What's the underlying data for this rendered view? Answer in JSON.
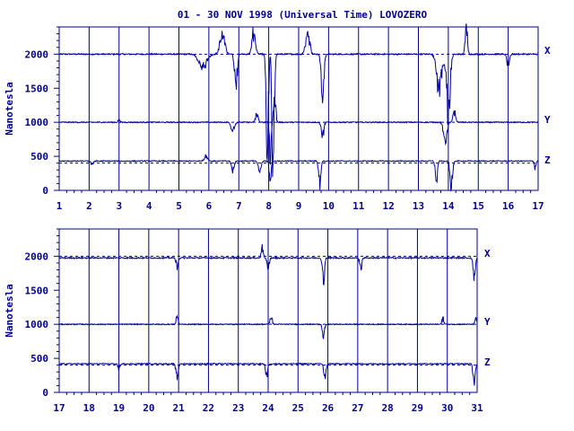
{
  "title": "01 - 30 NOV 1998 (Universal Time) LOVOZERO",
  "colors": {
    "trace": "#0000a0",
    "text": "#00008b",
    "frame": "#00008b",
    "background": "#ffffff"
  },
  "chart_data": [
    {
      "type": "line",
      "ylabel": "Nanotesla",
      "ylim": [
        0,
        2400
      ],
      "ytick_labels": [
        "0",
        "500",
        "1000",
        "1500",
        "2000"
      ],
      "xlim": [
        1,
        17
      ],
      "xtick_labels": [
        "1",
        "2",
        "3",
        "4",
        "5",
        "6",
        "7",
        "8",
        "9",
        "10",
        "11",
        "12",
        "13",
        "14",
        "15",
        "16",
        "17"
      ],
      "baselines": [
        2000,
        1000,
        400
      ],
      "series": [
        {
          "name": "X",
          "offset": 2000,
          "noise": 10,
          "events": [
            {
              "day": 5.8,
              "width": 0.18,
              "amp": -200
            },
            {
              "day": 6.45,
              "width": 0.12,
              "amp": 250
            },
            {
              "day": 6.9,
              "width": 0.06,
              "amp": -600
            },
            {
              "day": 7.5,
              "width": 0.08,
              "amp": 300
            },
            {
              "day": 7.95,
              "width": 0.05,
              "amp": -1400
            },
            {
              "day": 8.15,
              "width": 0.05,
              "amp": -1700
            },
            {
              "day": 9.3,
              "width": 0.1,
              "amp": 280
            },
            {
              "day": 9.8,
              "width": 0.06,
              "amp": -700
            },
            {
              "day": 13.7,
              "width": 0.12,
              "amp": -500
            },
            {
              "day": 14.0,
              "width": 0.08,
              "amp": -900
            },
            {
              "day": 14.6,
              "width": 0.05,
              "amp": 400
            },
            {
              "day": 16.0,
              "width": 0.06,
              "amp": -150
            }
          ]
        },
        {
          "name": "Y",
          "offset": 1000,
          "noise": 8,
          "events": [
            {
              "day": 3.0,
              "width": 0.04,
              "amp": 50
            },
            {
              "day": 6.8,
              "width": 0.08,
              "amp": -120
            },
            {
              "day": 7.6,
              "width": 0.06,
              "amp": 120
            },
            {
              "day": 8.05,
              "width": 0.04,
              "amp": -600
            },
            {
              "day": 8.2,
              "width": 0.05,
              "amp": 350
            },
            {
              "day": 9.8,
              "width": 0.06,
              "amp": -200
            },
            {
              "day": 13.9,
              "width": 0.08,
              "amp": -250
            },
            {
              "day": 14.2,
              "width": 0.06,
              "amp": 150
            }
          ]
        },
        {
          "name": "Z",
          "offset": 430,
          "noise": 8,
          "events": [
            {
              "day": 2.1,
              "width": 0.05,
              "amp": -60
            },
            {
              "day": 5.9,
              "width": 0.08,
              "amp": 80
            },
            {
              "day": 6.8,
              "width": 0.06,
              "amp": -150
            },
            {
              "day": 7.7,
              "width": 0.06,
              "amp": -160
            },
            {
              "day": 8.05,
              "width": 0.04,
              "amp": -400
            },
            {
              "day": 9.7,
              "width": 0.05,
              "amp": -320
            },
            {
              "day": 13.6,
              "width": 0.05,
              "amp": -250
            },
            {
              "day": 14.1,
              "width": 0.06,
              "amp": -380
            },
            {
              "day": 16.9,
              "width": 0.04,
              "amp": -100
            }
          ]
        }
      ]
    },
    {
      "type": "line",
      "ylabel": "Nanotesla",
      "ylim": [
        0,
        2400
      ],
      "ytick_labels": [
        "0",
        "500",
        "1000",
        "1500",
        "2000"
      ],
      "xlim": [
        17,
        31
      ],
      "xtick_labels": [
        "17",
        "18",
        "19",
        "20",
        "21",
        "22",
        "23",
        "24",
        "25",
        "26",
        "27",
        "28",
        "29",
        "30",
        "31"
      ],
      "baselines": [
        2000,
        1000,
        400
      ],
      "series": [
        {
          "name": "X",
          "offset": 1975,
          "noise": 10,
          "events": [
            {
              "day": 20.95,
              "width": 0.05,
              "amp": -120
            },
            {
              "day": 23.8,
              "width": 0.05,
              "amp": 140
            },
            {
              "day": 24.0,
              "width": 0.05,
              "amp": -150
            },
            {
              "day": 25.85,
              "width": 0.05,
              "amp": -350
            },
            {
              "day": 27.1,
              "width": 0.05,
              "amp": -160
            },
            {
              "day": 30.9,
              "width": 0.05,
              "amp": -250
            }
          ]
        },
        {
          "name": "Y",
          "offset": 1000,
          "noise": 7,
          "events": [
            {
              "day": 20.95,
              "width": 0.04,
              "amp": 130
            },
            {
              "day": 24.1,
              "width": 0.05,
              "amp": 100
            },
            {
              "day": 25.85,
              "width": 0.05,
              "amp": -150
            },
            {
              "day": 29.85,
              "width": 0.04,
              "amp": 100
            },
            {
              "day": 30.95,
              "width": 0.04,
              "amp": 80
            }
          ]
        },
        {
          "name": "Z",
          "offset": 420,
          "noise": 7,
          "events": [
            {
              "day": 19.0,
              "width": 0.05,
              "amp": -70
            },
            {
              "day": 20.95,
              "width": 0.05,
              "amp": -200
            },
            {
              "day": 23.95,
              "width": 0.05,
              "amp": -170
            },
            {
              "day": 25.9,
              "width": 0.05,
              "amp": -200
            },
            {
              "day": 30.9,
              "width": 0.05,
              "amp": -300
            }
          ]
        }
      ]
    }
  ]
}
